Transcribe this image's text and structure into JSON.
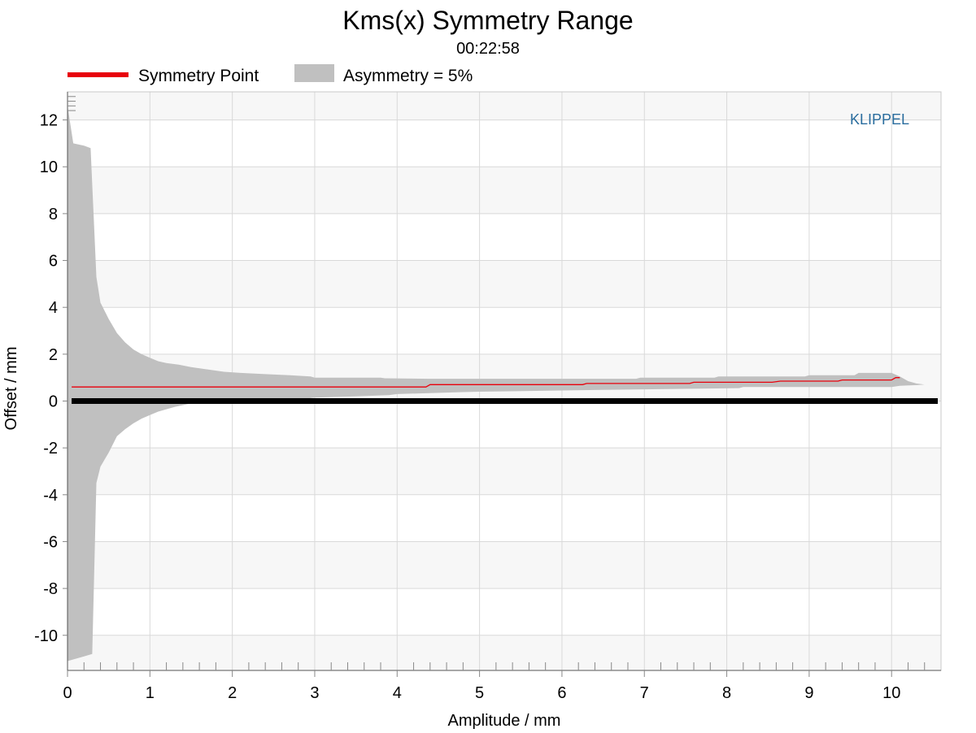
{
  "chart_data": {
    "type": "area",
    "title": "Kms(x) Symmetry Range",
    "subtitle": "00:22:58",
    "xlabel": "Amplitude / mm",
    "ylabel": "Offset / mm",
    "xlim": [
      0,
      10.6
    ],
    "ylim": [
      -11.5,
      13.2
    ],
    "xticks": [
      0,
      1,
      2,
      3,
      4,
      5,
      6,
      7,
      8,
      9,
      10
    ],
    "yticks": [
      -10,
      -8,
      -6,
      -4,
      -2,
      0,
      2,
      4,
      6,
      8,
      10,
      12
    ],
    "grid": true,
    "legend_position": "top-left",
    "watermark": "KLIPPEL",
    "colors": {
      "symmetry_point": "#e8000b",
      "band": "#c0c0c0",
      "zero_line": "#000000",
      "watermark": "#2a6d9e",
      "grid": "#d9d9d9",
      "stripe": "#f7f7f7"
    },
    "series": [
      {
        "name": "Symmetry Point",
        "kind": "line",
        "points": [
          [
            0.05,
            0.6
          ],
          [
            4.35,
            0.6
          ],
          [
            4.4,
            0.7
          ],
          [
            6.25,
            0.7
          ],
          [
            6.3,
            0.75
          ],
          [
            7.55,
            0.75
          ],
          [
            7.6,
            0.8
          ],
          [
            8.55,
            0.8
          ],
          [
            8.65,
            0.85
          ],
          [
            9.35,
            0.85
          ],
          [
            9.4,
            0.9
          ],
          [
            10.0,
            0.9
          ],
          [
            10.05,
            1.0
          ],
          [
            10.1,
            1.0
          ]
        ]
      },
      {
        "name": "Asymmetry = 5%",
        "kind": "band",
        "upper": [
          [
            0.0,
            12.6
          ],
          [
            0.07,
            11.0
          ],
          [
            0.2,
            10.9
          ],
          [
            0.28,
            10.8
          ],
          [
            0.35,
            5.3
          ],
          [
            0.4,
            4.2
          ],
          [
            0.5,
            3.5
          ],
          [
            0.6,
            2.9
          ],
          [
            0.7,
            2.5
          ],
          [
            0.8,
            2.2
          ],
          [
            0.9,
            2.0
          ],
          [
            1.0,
            1.85
          ],
          [
            1.1,
            1.7
          ],
          [
            1.2,
            1.62
          ],
          [
            1.35,
            1.55
          ],
          [
            1.5,
            1.45
          ],
          [
            1.7,
            1.35
          ],
          [
            1.9,
            1.25
          ],
          [
            2.1,
            1.2
          ],
          [
            2.4,
            1.15
          ],
          [
            2.7,
            1.1
          ],
          [
            2.95,
            1.05
          ],
          [
            3.0,
            1.0
          ],
          [
            3.8,
            1.0
          ],
          [
            3.85,
            0.97
          ],
          [
            4.4,
            0.95
          ],
          [
            5.0,
            0.95
          ],
          [
            6.9,
            0.95
          ],
          [
            6.95,
            1.0
          ],
          [
            7.85,
            1.0
          ],
          [
            7.9,
            1.05
          ],
          [
            8.95,
            1.05
          ],
          [
            9.0,
            1.1
          ],
          [
            9.55,
            1.1
          ],
          [
            9.6,
            1.2
          ],
          [
            10.0,
            1.2
          ],
          [
            10.1,
            1.05
          ],
          [
            10.2,
            0.85
          ],
          [
            10.3,
            0.75
          ],
          [
            10.4,
            0.7
          ]
        ],
        "lower": [
          [
            10.4,
            0.7
          ],
          [
            10.3,
            0.68
          ],
          [
            10.1,
            0.65
          ],
          [
            10.0,
            0.6
          ],
          [
            8.2,
            0.6
          ],
          [
            8.15,
            0.55
          ],
          [
            7.0,
            0.5
          ],
          [
            6.5,
            0.48
          ],
          [
            6.0,
            0.45
          ],
          [
            5.0,
            0.4
          ],
          [
            4.8,
            0.38
          ],
          [
            4.0,
            0.3
          ],
          [
            3.9,
            0.25
          ],
          [
            3.5,
            0.2
          ],
          [
            3.0,
            0.15
          ],
          [
            2.9,
            0.1
          ],
          [
            2.5,
            0.05
          ],
          [
            2.0,
            0.0
          ],
          [
            1.7,
            -0.05
          ],
          [
            1.5,
            -0.1
          ],
          [
            1.3,
            -0.25
          ],
          [
            1.1,
            -0.45
          ],
          [
            1.0,
            -0.6
          ],
          [
            0.9,
            -0.75
          ],
          [
            0.8,
            -0.95
          ],
          [
            0.7,
            -1.2
          ],
          [
            0.6,
            -1.5
          ],
          [
            0.5,
            -2.2
          ],
          [
            0.4,
            -2.8
          ],
          [
            0.35,
            -3.5
          ],
          [
            0.3,
            -10.8
          ],
          [
            0.2,
            -10.9
          ],
          [
            0.1,
            -11.0
          ],
          [
            0.0,
            -11.1
          ]
        ]
      }
    ],
    "zero_line": {
      "y": 0,
      "x_range": [
        0.05,
        10.6
      ]
    }
  }
}
